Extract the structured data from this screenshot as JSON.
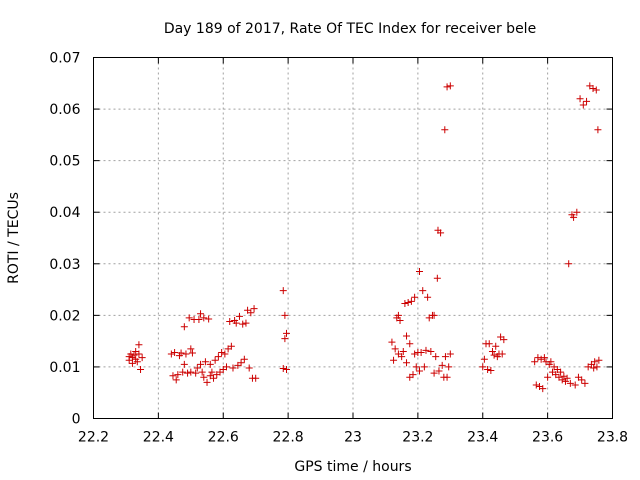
{
  "chart_data": {
    "type": "scatter",
    "title": "Day 189 of 2017, Rate Of TEC Index for receiver bele",
    "xlabel": "GPS time / hours",
    "ylabel": "ROTI / TECUs",
    "xlim": [
      22.2,
      23.8
    ],
    "ylim": [
      0,
      0.07
    ],
    "x_ticks": [
      "22.2",
      "22.4",
      "22.6",
      "22.8",
      "23",
      "23.2",
      "23.4",
      "23.6",
      "23.8"
    ],
    "y_ticks": [
      "0",
      "0.01",
      "0.02",
      "0.03",
      "0.04",
      "0.05",
      "0.06",
      "0.07"
    ],
    "grid": true,
    "marker": "+",
    "color": "#cc0000",
    "points": [
      [
        22.31,
        0.012
      ],
      [
        22.31,
        0.0113
      ],
      [
        22.315,
        0.0125
      ],
      [
        22.32,
        0.0107
      ],
      [
        22.32,
        0.0118
      ],
      [
        22.325,
        0.0123
      ],
      [
        22.33,
        0.0115
      ],
      [
        22.33,
        0.013
      ],
      [
        22.335,
        0.011
      ],
      [
        22.34,
        0.0125
      ],
      [
        22.34,
        0.0143
      ],
      [
        22.345,
        0.0095
      ],
      [
        22.35,
        0.0118
      ],
      [
        22.44,
        0.0125
      ],
      [
        22.445,
        0.0083
      ],
      [
        22.45,
        0.0128
      ],
      [
        22.455,
        0.0075
      ],
      [
        22.46,
        0.0085
      ],
      [
        22.465,
        0.0122
      ],
      [
        22.47,
        0.0127
      ],
      [
        22.475,
        0.009
      ],
      [
        22.48,
        0.0105
      ],
      [
        22.48,
        0.0178
      ],
      [
        22.485,
        0.0125
      ],
      [
        22.49,
        0.0088
      ],
      [
        22.495,
        0.0195
      ],
      [
        22.5,
        0.0135
      ],
      [
        22.5,
        0.009
      ],
      [
        22.505,
        0.0127
      ],
      [
        22.51,
        0.0192
      ],
      [
        22.515,
        0.0088
      ],
      [
        22.52,
        0.0098
      ],
      [
        22.525,
        0.0192
      ],
      [
        22.53,
        0.0203
      ],
      [
        22.53,
        0.0105
      ],
      [
        22.535,
        0.009
      ],
      [
        22.54,
        0.0195
      ],
      [
        22.54,
        0.008
      ],
      [
        22.545,
        0.011
      ],
      [
        22.55,
        0.007
      ],
      [
        22.555,
        0.0193
      ],
      [
        22.56,
        0.0083
      ],
      [
        22.56,
        0.0105
      ],
      [
        22.565,
        0.009
      ],
      [
        22.57,
        0.0078
      ],
      [
        22.575,
        0.0113
      ],
      [
        22.58,
        0.0085
      ],
      [
        22.585,
        0.012
      ],
      [
        22.59,
        0.009
      ],
      [
        22.595,
        0.0128
      ],
      [
        22.6,
        0.0095
      ],
      [
        22.605,
        0.0125
      ],
      [
        22.61,
        0.01
      ],
      [
        22.615,
        0.0135
      ],
      [
        22.62,
        0.0188
      ],
      [
        22.625,
        0.014
      ],
      [
        22.63,
        0.0098
      ],
      [
        22.635,
        0.019
      ],
      [
        22.64,
        0.0185
      ],
      [
        22.645,
        0.0103
      ],
      [
        22.65,
        0.0198
      ],
      [
        22.655,
        0.0108
      ],
      [
        22.66,
        0.0183
      ],
      [
        22.665,
        0.0115
      ],
      [
        22.67,
        0.0185
      ],
      [
        22.675,
        0.021
      ],
      [
        22.68,
        0.0098
      ],
      [
        22.685,
        0.0205
      ],
      [
        22.69,
        0.0078
      ],
      [
        22.695,
        0.0213
      ],
      [
        22.7,
        0.0078
      ],
      [
        22.785,
        0.0248
      ],
      [
        22.785,
        0.0097
      ],
      [
        22.79,
        0.02
      ],
      [
        22.79,
        0.0155
      ],
      [
        22.795,
        0.0165
      ],
      [
        22.795,
        0.0095
      ],
      [
        23.12,
        0.0148
      ],
      [
        23.125,
        0.0113
      ],
      [
        23.13,
        0.0135
      ],
      [
        23.135,
        0.0195
      ],
      [
        23.14,
        0.02
      ],
      [
        23.14,
        0.0125
      ],
      [
        23.145,
        0.019
      ],
      [
        23.15,
        0.012
      ],
      [
        23.155,
        0.013
      ],
      [
        23.16,
        0.0223
      ],
      [
        23.165,
        0.016
      ],
      [
        23.165,
        0.0108
      ],
      [
        23.17,
        0.0225
      ],
      [
        23.175,
        0.008
      ],
      [
        23.175,
        0.0145
      ],
      [
        23.18,
        0.0227
      ],
      [
        23.185,
        0.0085
      ],
      [
        23.19,
        0.0235
      ],
      [
        23.19,
        0.0125
      ],
      [
        23.195,
        0.01
      ],
      [
        23.2,
        0.0128
      ],
      [
        23.205,
        0.0285
      ],
      [
        23.205,
        0.0092
      ],
      [
        23.21,
        0.0128
      ],
      [
        23.215,
        0.0248
      ],
      [
        23.22,
        0.01
      ],
      [
        23.225,
        0.0132
      ],
      [
        23.23,
        0.0235
      ],
      [
        23.235,
        0.0195
      ],
      [
        23.24,
        0.013
      ],
      [
        23.245,
        0.02
      ],
      [
        23.25,
        0.02
      ],
      [
        23.25,
        0.0088
      ],
      [
        23.255,
        0.012
      ],
      [
        23.26,
        0.0272
      ],
      [
        23.262,
        0.0365
      ],
      [
        23.265,
        0.0092
      ],
      [
        23.27,
        0.036
      ],
      [
        23.275,
        0.0103
      ],
      [
        23.28,
        0.008
      ],
      [
        23.283,
        0.056
      ],
      [
        23.285,
        0.012
      ],
      [
        23.29,
        0.0643
      ],
      [
        23.29,
        0.008
      ],
      [
        23.295,
        0.01
      ],
      [
        23.3,
        0.0645
      ],
      [
        23.3,
        0.0125
      ],
      [
        23.4,
        0.01
      ],
      [
        23.405,
        0.0115
      ],
      [
        23.41,
        0.0145
      ],
      [
        23.415,
        0.0095
      ],
      [
        23.42,
        0.0145
      ],
      [
        23.425,
        0.0093
      ],
      [
        23.43,
        0.013
      ],
      [
        23.435,
        0.0123
      ],
      [
        23.44,
        0.014
      ],
      [
        23.445,
        0.012
      ],
      [
        23.45,
        0.0125
      ],
      [
        23.455,
        0.0158
      ],
      [
        23.46,
        0.0125
      ],
      [
        23.465,
        0.0153
      ],
      [
        23.56,
        0.011
      ],
      [
        23.565,
        0.0065
      ],
      [
        23.57,
        0.0118
      ],
      [
        23.575,
        0.0062
      ],
      [
        23.58,
        0.0115
      ],
      [
        23.585,
        0.0058
      ],
      [
        23.59,
        0.0118
      ],
      [
        23.595,
        0.011
      ],
      [
        23.6,
        0.008
      ],
      [
        23.605,
        0.0105
      ],
      [
        23.61,
        0.011
      ],
      [
        23.615,
        0.009
      ],
      [
        23.62,
        0.01
      ],
      [
        23.625,
        0.0085
      ],
      [
        23.63,
        0.0095
      ],
      [
        23.635,
        0.008
      ],
      [
        23.64,
        0.009
      ],
      [
        23.645,
        0.0075
      ],
      [
        23.65,
        0.0082
      ],
      [
        23.655,
        0.0072
      ],
      [
        23.66,
        0.0078
      ],
      [
        23.665,
        0.03
      ],
      [
        23.67,
        0.0068
      ],
      [
        23.675,
        0.0395
      ],
      [
        23.68,
        0.039
      ],
      [
        23.685,
        0.0065
      ],
      [
        23.69,
        0.04
      ],
      [
        23.695,
        0.008
      ],
      [
        23.7,
        0.062
      ],
      [
        23.705,
        0.0075
      ],
      [
        23.71,
        0.0608
      ],
      [
        23.715,
        0.0068
      ],
      [
        23.72,
        0.0615
      ],
      [
        23.725,
        0.01
      ],
      [
        23.73,
        0.0645
      ],
      [
        23.735,
        0.0105
      ],
      [
        23.74,
        0.064
      ],
      [
        23.742,
        0.0098
      ],
      [
        23.745,
        0.011
      ],
      [
        23.75,
        0.0637
      ],
      [
        23.752,
        0.01
      ],
      [
        23.755,
        0.056
      ],
      [
        23.758,
        0.0113
      ]
    ]
  }
}
